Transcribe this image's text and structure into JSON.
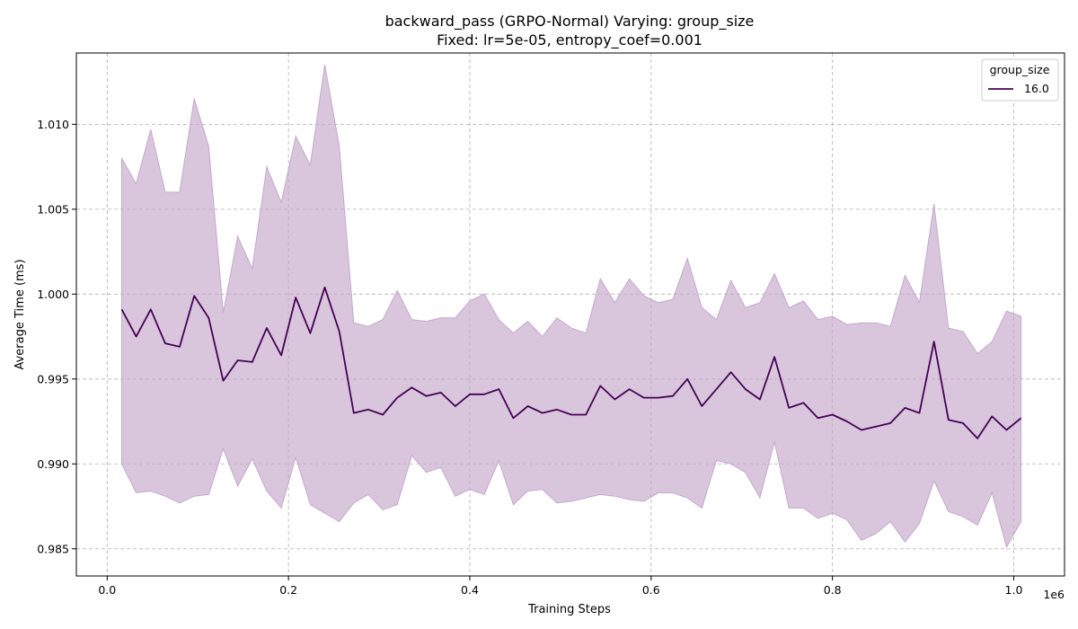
{
  "chart_data": {
    "type": "line",
    "title": "backward_pass (GRPO-Normal) Varying: group_size",
    "subtitle": "Fixed: lr=5e-05, entropy_coef=0.001",
    "xlabel": "Training Steps",
    "ylabel": "Average Time (ms)",
    "x_offset_label": "1e6",
    "xlim": [
      -0.034,
      1.056
    ],
    "ylim": [
      0.9834,
      1.0142
    ],
    "x_ticks": [
      0.0,
      0.2,
      0.4,
      0.6,
      0.8,
      1.0
    ],
    "y_ticks": [
      0.985,
      0.99,
      0.995,
      1.0,
      1.005,
      1.01
    ],
    "x_tick_labels": [
      "0.0",
      "0.2",
      "0.4",
      "0.6",
      "0.8",
      "1.0"
    ],
    "y_tick_labels": [
      "0.985",
      "0.990",
      "0.995",
      "1.000",
      "1.005",
      "1.010"
    ],
    "grid": true,
    "legend": {
      "title": "group_size",
      "position": "top-right"
    },
    "colors": {
      "line": "#440154",
      "band": "#c4a8cb"
    },
    "x": [
      0.016,
      0.032,
      0.048,
      0.064,
      0.08,
      0.096,
      0.112,
      0.128,
      0.144,
      0.16,
      0.176,
      0.192,
      0.208,
      0.224,
      0.24,
      0.256,
      0.272,
      0.288,
      0.304,
      0.32,
      0.336,
      0.352,
      0.368,
      0.384,
      0.4,
      0.416,
      0.432,
      0.448,
      0.464,
      0.48,
      0.496,
      0.512,
      0.528,
      0.544,
      0.56,
      0.576,
      0.592,
      0.608,
      0.624,
      0.64,
      0.656,
      0.672,
      0.688,
      0.704,
      0.72,
      0.736,
      0.752,
      0.768,
      0.784,
      0.8,
      0.816,
      0.832,
      0.848,
      0.864,
      0.88,
      0.896,
      0.912,
      0.928,
      0.944,
      0.96,
      0.976,
      0.992,
      1.008
    ],
    "series": [
      {
        "name": "16.0",
        "values": [
          0.9991,
          0.9975,
          0.9991,
          0.9971,
          0.9969,
          0.9999,
          0.9986,
          0.9949,
          0.9961,
          0.996,
          0.998,
          0.9964,
          0.9998,
          0.9977,
          1.0004,
          0.9978,
          0.993,
          0.9932,
          0.9929,
          0.9939,
          0.9945,
          0.994,
          0.9942,
          0.9934,
          0.9941,
          0.9941,
          0.9944,
          0.9927,
          0.9934,
          0.993,
          0.9932,
          0.9929,
          0.9929,
          0.9946,
          0.9938,
          0.9944,
          0.9939,
          0.9939,
          0.994,
          0.995,
          0.9934,
          0.9944,
          0.9954,
          0.9944,
          0.9938,
          0.9963,
          0.9933,
          0.9936,
          0.9927,
          0.9929,
          0.9925,
          0.992,
          0.9922,
          0.9924,
          0.9933,
          0.993,
          0.9972,
          0.9926,
          0.9924,
          0.9915,
          0.9928,
          0.992,
          0.9927
        ],
        "upper": [
          1.008,
          1.0065,
          1.0097,
          1.006,
          1.006,
          1.0115,
          1.0087,
          0.9989,
          1.0034,
          1.0015,
          1.0075,
          1.0054,
          1.0093,
          1.0076,
          1.0135,
          1.0087,
          0.9983,
          0.9981,
          0.9985,
          1.0002,
          0.9985,
          0.9984,
          0.9986,
          0.9986,
          0.9996,
          1.0,
          0.9985,
          0.9977,
          0.9984,
          0.9975,
          0.9986,
          0.998,
          0.9977,
          1.0009,
          0.9995,
          1.0009,
          0.9999,
          0.9995,
          0.9997,
          1.0021,
          0.9992,
          0.9985,
          1.0008,
          0.9992,
          0.9995,
          1.0012,
          0.9992,
          0.9996,
          0.9985,
          0.9987,
          0.9982,
          0.9983,
          0.9983,
          0.9981,
          1.0011,
          0.9995,
          1.0053,
          0.998,
          0.9978,
          0.9965,
          0.9972,
          0.999,
          0.9987
        ],
        "lower": [
          0.99,
          0.9883,
          0.9884,
          0.9881,
          0.9877,
          0.9881,
          0.9882,
          0.9909,
          0.9887,
          0.9903,
          0.9884,
          0.9874,
          0.9904,
          0.9876,
          0.9871,
          0.9866,
          0.9877,
          0.9882,
          0.9873,
          0.9876,
          0.9905,
          0.9895,
          0.9898,
          0.9881,
          0.9885,
          0.9882,
          0.9902,
          0.9876,
          0.9884,
          0.9885,
          0.9877,
          0.9878,
          0.988,
          0.9882,
          0.9881,
          0.9879,
          0.9878,
          0.9883,
          0.9883,
          0.988,
          0.9874,
          0.9902,
          0.99,
          0.9895,
          0.988,
          0.9913,
          0.9874,
          0.9874,
          0.9868,
          0.9871,
          0.9867,
          0.9855,
          0.9859,
          0.9866,
          0.9854,
          0.9865,
          0.989,
          0.9872,
          0.9869,
          0.9864,
          0.9883,
          0.9851,
          0.9866
        ]
      }
    ]
  }
}
